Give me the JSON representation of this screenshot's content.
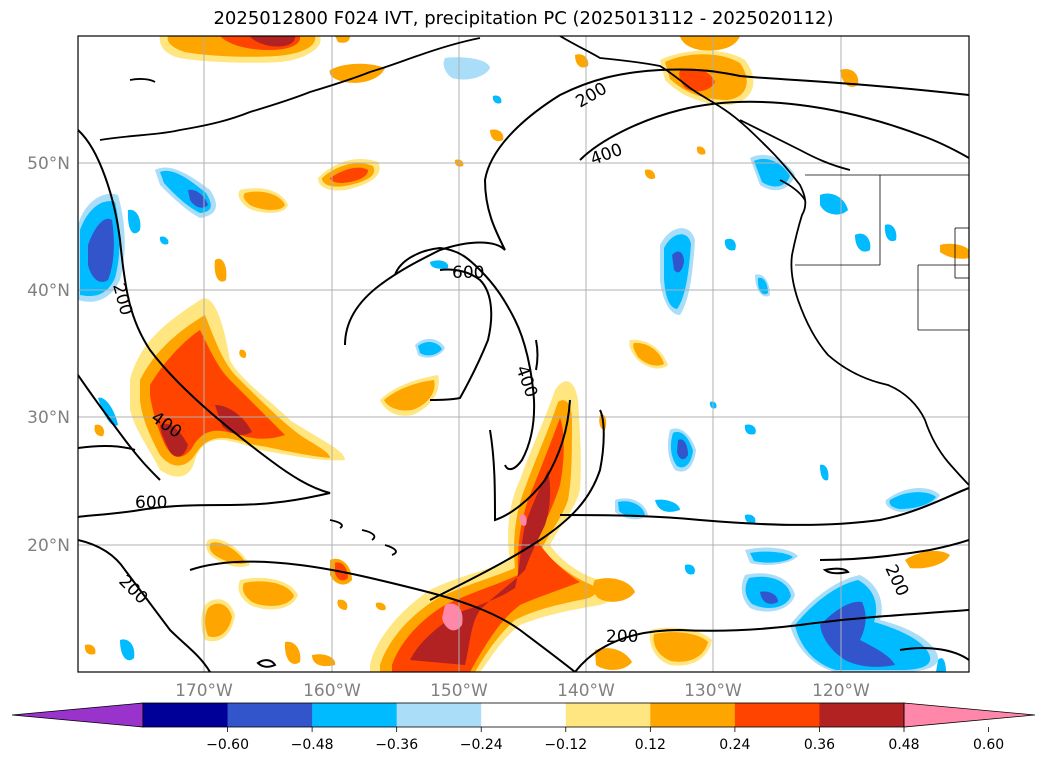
{
  "title": "2025012800 F024 IVT, precipitation PC (2025013112 - 2025020112)",
  "latitude_labels": [
    "50°N",
    "40°N",
    "30°N",
    "20°N"
  ],
  "longitude_labels": [
    "170°W",
    "160°W",
    "150°W",
    "140°W",
    "130°W",
    "120°W"
  ],
  "contour_labels": [
    "200",
    "400",
    "600",
    "400",
    "600",
    "200",
    "400",
    "200",
    "200",
    "200"
  ],
  "colorbar": {
    "ticks": [
      "−0.60",
      "−0.48",
      "−0.36",
      "−0.24",
      "−0.12",
      "0.12",
      "0.24",
      "0.36",
      "0.48",
      "0.60"
    ],
    "colors": [
      "#9933cc",
      "#000099",
      "#3355cc",
      "#00bbff",
      "#aaddf8",
      "#ffffff",
      "#ffe680",
      "#ffa500",
      "#ff4400",
      "#b22222",
      "#ff88aa"
    ]
  }
}
